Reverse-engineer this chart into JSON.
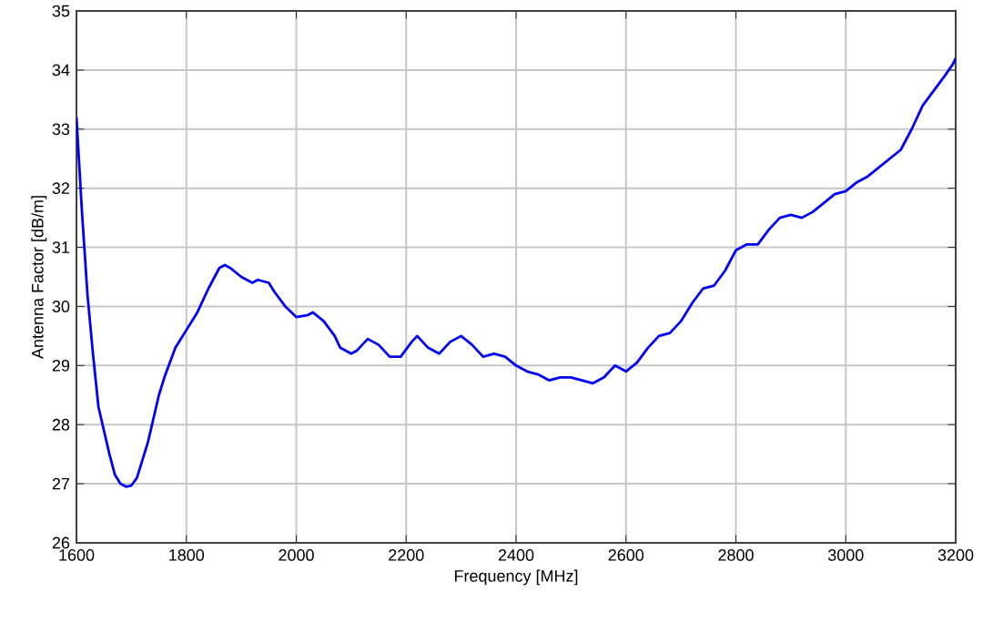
{
  "chart_data": {
    "type": "line",
    "xlabel": "Frequency [MHz]",
    "ylabel": "Antenna Factor [dB/m]",
    "xlim": [
      1600,
      3200
    ],
    "ylim": [
      26,
      35
    ],
    "xticks": [
      1600,
      1800,
      2000,
      2200,
      2400,
      2600,
      2800,
      3000,
      3200
    ],
    "yticks": [
      26,
      27,
      28,
      29,
      30,
      31,
      32,
      33,
      34,
      35
    ],
    "grid": true,
    "marker": "none",
    "line_style": "solid",
    "series": [
      {
        "color": "#0000ff",
        "x": [
          1600,
          1610,
          1620,
          1630,
          1640,
          1650,
          1660,
          1670,
          1680,
          1690,
          1700,
          1710,
          1720,
          1730,
          1740,
          1750,
          1760,
          1780,
          1800,
          1820,
          1840,
          1860,
          1870,
          1880,
          1900,
          1920,
          1930,
          1950,
          1960,
          1980,
          2000,
          2020,
          2030,
          2050,
          2070,
          2080,
          2100,
          2110,
          2130,
          2150,
          2170,
          2190,
          2210,
          2220,
          2240,
          2260,
          2280,
          2300,
          2320,
          2340,
          2360,
          2380,
          2400,
          2420,
          2440,
          2460,
          2480,
          2500,
          2520,
          2540,
          2560,
          2580,
          2600,
          2620,
          2640,
          2660,
          2680,
          2700,
          2720,
          2740,
          2760,
          2780,
          2800,
          2820,
          2840,
          2860,
          2880,
          2900,
          2920,
          2940,
          2960,
          2980,
          3000,
          3020,
          3040,
          3060,
          3080,
          3100,
          3120,
          3140,
          3160,
          3180,
          3195,
          3200
        ],
        "values": [
          33.2,
          31.6,
          30.2,
          29.2,
          28.3,
          27.9,
          27.5,
          27.15,
          27.0,
          26.95,
          26.97,
          27.1,
          27.4,
          27.7,
          28.1,
          28.5,
          28.8,
          29.3,
          29.6,
          29.9,
          30.3,
          30.65,
          30.7,
          30.65,
          30.5,
          30.4,
          30.45,
          30.4,
          30.25,
          30.0,
          29.82,
          29.85,
          29.9,
          29.75,
          29.5,
          29.3,
          29.2,
          29.25,
          29.45,
          29.35,
          29.15,
          29.15,
          29.4,
          29.5,
          29.3,
          29.2,
          29.4,
          29.5,
          29.35,
          29.15,
          29.2,
          29.15,
          29.0,
          28.9,
          28.85,
          28.75,
          28.8,
          28.8,
          28.75,
          28.7,
          28.8,
          29.0,
          28.9,
          29.05,
          29.3,
          29.5,
          29.55,
          29.75,
          30.05,
          30.3,
          30.35,
          30.6,
          30.95,
          31.05,
          31.05,
          31.3,
          31.5,
          31.55,
          31.5,
          31.6,
          31.75,
          31.9,
          31.95,
          32.1,
          32.2,
          32.35,
          32.5,
          32.65,
          33.0,
          33.4,
          33.65,
          33.9,
          34.1,
          34.2
        ]
      }
    ]
  }
}
